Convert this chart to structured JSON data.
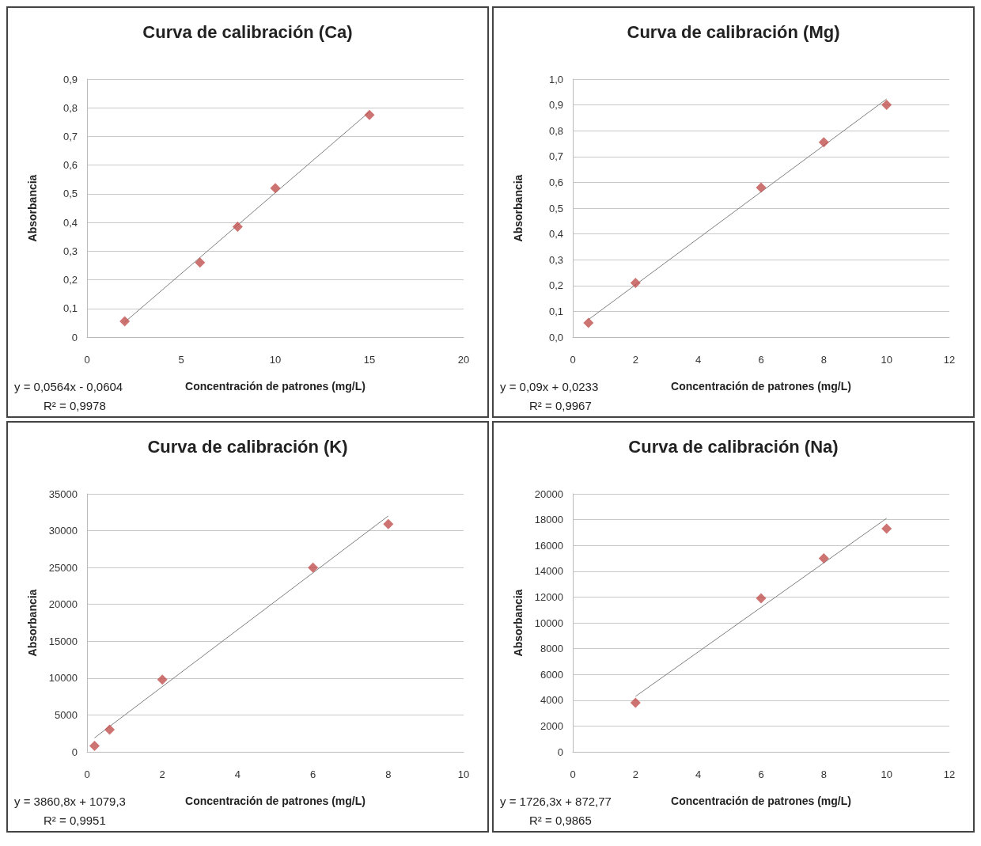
{
  "chart_data": [
    {
      "type": "scatter",
      "title": "Curva de calibración (Ca)",
      "xlabel": "Concentración de patrones (mg/L)",
      "ylabel": "Absorbancia",
      "x": [
        2,
        6,
        8,
        10,
        15
      ],
      "grid": "y",
      "series": [
        {
          "color": "#c0504d",
          "marker": "diamond",
          "values": [
            0.055,
            0.26,
            0.385,
            0.52,
            0.775
          ]
        },
        {
          "type": "line",
          "marker": "none",
          "color": "#7f7f7f",
          "x": [
            2,
            15
          ],
          "values": [
            0.052,
            0.786
          ]
        }
      ],
      "xlim": [
        0,
        20
      ],
      "xticks": [
        0,
        5,
        10,
        15,
        20
      ],
      "ylim": [
        0,
        0.9
      ],
      "yticks": [
        {
          "value": 0,
          "label": "0"
        },
        {
          "value": 0.1,
          "label": "0,1"
        },
        {
          "value": 0.2,
          "label": "0,2"
        },
        {
          "value": 0.3,
          "label": "0,3"
        },
        {
          "value": 0.4,
          "label": "0,4"
        },
        {
          "value": 0.5,
          "label": "0,5"
        },
        {
          "value": 0.6,
          "label": "0,6"
        },
        {
          "value": 0.7,
          "label": "0,7"
        },
        {
          "value": 0.8,
          "label": "0,8"
        },
        {
          "value": 0.9,
          "label": "0,9"
        }
      ],
      "annotations": [
        "y = 0,0564x - 0,0604",
        "R² = 0,9978"
      ]
    },
    {
      "type": "scatter",
      "title": "Curva de calibración (Mg)",
      "xlabel": "Concentración de patrones (mg/L)",
      "ylabel": "Absorbancia",
      "x": [
        0.5,
        2,
        6,
        8,
        10
      ],
      "grid": "y",
      "series": [
        {
          "color": "#c0504d",
          "marker": "diamond",
          "values": [
            0.055,
            0.21,
            0.58,
            0.755,
            0.9
          ]
        },
        {
          "type": "line",
          "marker": "none",
          "color": "#7f7f7f",
          "x": [
            0.5,
            10
          ],
          "values": [
            0.068,
            0.923
          ]
        }
      ],
      "xlim": [
        0,
        12
      ],
      "xticks": [
        0,
        2,
        4,
        6,
        8,
        10,
        12
      ],
      "ylim": [
        0,
        1
      ],
      "yticks": [
        {
          "value": 0,
          "label": "0,0"
        },
        {
          "value": 0.1,
          "label": "0,1"
        },
        {
          "value": 0.2,
          "label": "0,2"
        },
        {
          "value": 0.3,
          "label": "0,3"
        },
        {
          "value": 0.4,
          "label": "0,4"
        },
        {
          "value": 0.5,
          "label": "0,5"
        },
        {
          "value": 0.6,
          "label": "0,6"
        },
        {
          "value": 0.7,
          "label": "0,7"
        },
        {
          "value": 0.8,
          "label": "0,8"
        },
        {
          "value": 0.9,
          "label": "0,9"
        },
        {
          "value": 1,
          "label": "1,0"
        }
      ],
      "annotations": [
        "y = 0,09x + 0,0233",
        "R² = 0,9967"
      ]
    },
    {
      "type": "scatter",
      "title": "Curva de calibración (K)",
      "xlabel": "Concentración de patrones (mg/L)",
      "ylabel": "Absorbancia",
      "x": [
        0.2,
        0.6,
        2,
        6,
        8
      ],
      "grid": "y",
      "series": [
        {
          "color": "#c0504d",
          "marker": "diamond",
          "values": [
            800,
            3000,
            9800,
            25000,
            30900
          ]
        },
        {
          "type": "line",
          "marker": "none",
          "color": "#7f7f7f",
          "x": [
            0.2,
            8
          ],
          "values": [
            1900,
            32000
          ]
        }
      ],
      "xlim": [
        0,
        10
      ],
      "xticks": [
        0,
        2,
        4,
        6,
        8,
        10
      ],
      "ylim": [
        0,
        35000
      ],
      "yticks": [
        0,
        5000,
        10000,
        15000,
        20000,
        25000,
        30000,
        35000
      ],
      "annotations": [
        "y = 3860,8x + 1079,3",
        "R² = 0,9951"
      ]
    },
    {
      "type": "scatter",
      "title": "Curva de calibración (Na)",
      "xlabel": "Concentración de patrones (mg/L)",
      "ylabel": "Absorbancia",
      "x": [
        2,
        6,
        8,
        10
      ],
      "grid": "y",
      "series": [
        {
          "color": "#c0504d",
          "marker": "diamond",
          "values": [
            3800,
            11900,
            15000,
            17300
          ]
        },
        {
          "type": "line",
          "marker": "none",
          "color": "#7f7f7f",
          "x": [
            2,
            10
          ],
          "values": [
            4300,
            18100
          ]
        }
      ],
      "xlim": [
        0,
        12
      ],
      "xticks": [
        0,
        2,
        4,
        6,
        8,
        10,
        12
      ],
      "ylim": [
        0,
        20000
      ],
      "yticks": [
        0,
        2000,
        4000,
        6000,
        8000,
        10000,
        12000,
        14000,
        16000,
        18000,
        20000
      ],
      "annotations": [
        "y = 1726,3x + 872,77",
        "R² = 0,9865"
      ]
    }
  ]
}
